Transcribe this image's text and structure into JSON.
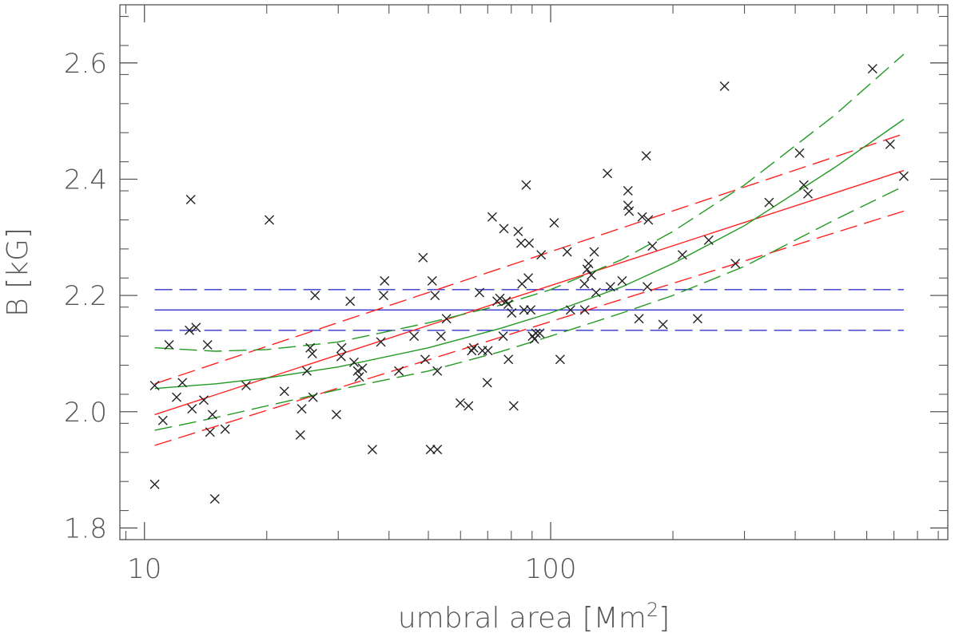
{
  "chart_data": {
    "type": "scatter",
    "xlabel": "umbral area [Mm",
    "xlabel_sup": "2",
    "xlabel_close": "]",
    "ylabel": "B [kG]",
    "xscale": "log",
    "xlim": [
      8.7,
      950
    ],
    "ylim": [
      1.78,
      2.7
    ],
    "x_ticks": [
      10,
      100
    ],
    "x_tick_labels": [
      "10",
      "100"
    ],
    "y_ticks": [
      1.8,
      2.0,
      2.2,
      2.4,
      2.6
    ],
    "y_tick_labels": [
      "1.8",
      "2.0",
      "2.2",
      "2.4",
      "2.6"
    ],
    "grid": false,
    "marker": "x",
    "colors": {
      "points": "#222222",
      "const": "#3333cc",
      "linear": "#ff2222",
      "quad": "#229922",
      "axis": "#555555"
    },
    "points": [
      [
        10.6,
        1.875
      ],
      [
        10.6,
        2.045
      ],
      [
        11.1,
        1.985
      ],
      [
        11.5,
        2.115
      ],
      [
        12.0,
        2.025
      ],
      [
        12.4,
        2.05
      ],
      [
        12.9,
        2.14
      ],
      [
        13.0,
        2.365
      ],
      [
        13.1,
        2.005
      ],
      [
        13.4,
        2.145
      ],
      [
        14.0,
        2.02
      ],
      [
        14.3,
        2.115
      ],
      [
        14.5,
        1.965
      ],
      [
        14.7,
        1.995
      ],
      [
        14.9,
        1.85
      ],
      [
        15.8,
        1.97
      ],
      [
        17.8,
        2.045
      ],
      [
        20.3,
        2.33
      ],
      [
        22.1,
        2.035
      ],
      [
        24.2,
        1.96
      ],
      [
        24.4,
        2.005
      ],
      [
        25.1,
        2.07
      ],
      [
        25.6,
        2.11
      ],
      [
        25.9,
        2.1
      ],
      [
        26.0,
        2.025
      ],
      [
        26.3,
        2.2
      ],
      [
        29.7,
        1.995
      ],
      [
        30.5,
        2.095
      ],
      [
        30.6,
        2.11
      ],
      [
        32.1,
        2.19
      ],
      [
        32.8,
        2.085
      ],
      [
        33.5,
        2.07
      ],
      [
        33.8,
        2.06
      ],
      [
        34.4,
        2.075
      ],
      [
        36.4,
        1.935
      ],
      [
        38.2,
        2.12
      ],
      [
        38.8,
        2.2
      ],
      [
        39.0,
        2.225
      ],
      [
        42.3,
        2.07
      ],
      [
        46.1,
        2.13
      ],
      [
        48.5,
        2.265
      ],
      [
        49.1,
        2.09
      ],
      [
        50.6,
        1.935
      ],
      [
        51.1,
        2.225
      ],
      [
        51.9,
        2.2
      ],
      [
        52.6,
        1.935
      ],
      [
        52.6,
        2.07
      ],
      [
        53.7,
        2.13
      ],
      [
        55.4,
        2.16
      ],
      [
        59.9,
        2.015
      ],
      [
        62.8,
        2.01
      ],
      [
        63.9,
        2.105
      ],
      [
        64.6,
        2.11
      ],
      [
        66.8,
        2.205
      ],
      [
        67.9,
        2.105
      ],
      [
        69.8,
        2.05
      ],
      [
        70.1,
        2.105
      ],
      [
        71.8,
        2.335
      ],
      [
        73.8,
        2.19
      ],
      [
        75.0,
        2.195
      ],
      [
        76.4,
        2.13
      ],
      [
        76.7,
        2.315
      ],
      [
        77.7,
        2.19
      ],
      [
        78.6,
        2.185
      ],
      [
        78.7,
        2.09
      ],
      [
        80.2,
        2.17
      ],
      [
        81.1,
        2.01
      ],
      [
        83.2,
        2.31
      ],
      [
        84.5,
        2.29
      ],
      [
        85.0,
        2.22
      ],
      [
        86.0,
        2.175
      ],
      [
        87.1,
        2.39
      ],
      [
        88.1,
        2.23
      ],
      [
        88.5,
        2.29
      ],
      [
        89.3,
        2.175
      ],
      [
        90.2,
        2.13
      ],
      [
        91.2,
        2.125
      ],
      [
        92.0,
        2.135
      ],
      [
        94.0,
        2.135
      ],
      [
        94.8,
        2.27
      ],
      [
        102.0,
        2.325
      ],
      [
        105.5,
        2.09
      ],
      [
        109.8,
        2.275
      ],
      [
        111.9,
        2.175
      ],
      [
        121.1,
        2.22
      ],
      [
        121.3,
        2.175
      ],
      [
        123.0,
        2.245
      ],
      [
        124.0,
        2.255
      ],
      [
        126.0,
        2.235
      ],
      [
        128.0,
        2.275
      ],
      [
        129.4,
        2.205
      ],
      [
        138.0,
        2.41
      ],
      [
        140.3,
        2.215
      ],
      [
        150.0,
        2.225
      ],
      [
        155.0,
        2.38
      ],
      [
        155.0,
        2.355
      ],
      [
        156.0,
        2.345
      ],
      [
        165.0,
        2.16
      ],
      [
        168.0,
        2.335
      ],
      [
        172.0,
        2.44
      ],
      [
        173.0,
        2.215
      ],
      [
        174.0,
        2.33
      ],
      [
        178.0,
        2.285
      ],
      [
        189.0,
        2.15
      ],
      [
        211.0,
        2.27
      ],
      [
        230.0,
        2.16
      ],
      [
        245.0,
        2.295
      ],
      [
        268.0,
        2.56
      ],
      [
        285.0,
        2.255
      ],
      [
        345.0,
        2.36
      ],
      [
        410.0,
        2.445
      ],
      [
        420.0,
        2.39
      ],
      [
        430.0,
        2.375
      ],
      [
        620.0,
        2.59
      ],
      [
        685.0,
        2.46
      ],
      [
        740.0,
        2.405
      ]
    ],
    "series": [
      {
        "style": "const",
        "color": "#3333cc",
        "dashed": false,
        "x": [
          10.6,
          740
        ],
        "y": [
          2.175,
          2.175
        ]
      },
      {
        "style": "const",
        "color": "#3333cc",
        "dashed": true,
        "x": [
          10.6,
          740
        ],
        "y": [
          2.21,
          2.21
        ]
      },
      {
        "style": "const",
        "color": "#3333cc",
        "dashed": true,
        "x": [
          10.6,
          740
        ],
        "y": [
          2.14,
          2.14
        ]
      },
      {
        "style": "linear",
        "color": "#ff2222",
        "dashed": false,
        "x": [
          10.6,
          740
        ],
        "y": [
          1.995,
          2.415
        ]
      },
      {
        "style": "linear",
        "color": "#ff2222",
        "dashed": true,
        "x": [
          10.6,
          740
        ],
        "y": [
          2.048,
          2.478
        ]
      },
      {
        "style": "linear",
        "color": "#ff2222",
        "dashed": true,
        "x": [
          10.6,
          740
        ],
        "y": [
          1.942,
          2.345
        ]
      },
      {
        "style": "quad",
        "color": "#229922",
        "dashed": false,
        "x": [
          10.6,
          15,
          20,
          30,
          50,
          75,
          100,
          150,
          200,
          300,
          500,
          740
        ],
        "y": [
          2.04,
          2.048,
          2.058,
          2.077,
          2.11,
          2.143,
          2.17,
          2.215,
          2.255,
          2.32,
          2.42,
          2.503
        ]
      },
      {
        "style": "quad",
        "color": "#229922",
        "dashed": true,
        "x": [
          10.6,
          15,
          20,
          30,
          50,
          75,
          100,
          150,
          200,
          300,
          500,
          740
        ],
        "y": [
          2.11,
          2.104,
          2.107,
          2.12,
          2.153,
          2.183,
          2.21,
          2.262,
          2.31,
          2.39,
          2.51,
          2.615
        ]
      },
      {
        "style": "quad",
        "color": "#229922",
        "dashed": true,
        "x": [
          10.6,
          15,
          20,
          30,
          50,
          75,
          100,
          150,
          200,
          300,
          500,
          740
        ],
        "y": [
          1.968,
          1.99,
          2.01,
          2.038,
          2.07,
          2.103,
          2.13,
          2.17,
          2.2,
          2.25,
          2.33,
          2.388
        ]
      }
    ]
  }
}
